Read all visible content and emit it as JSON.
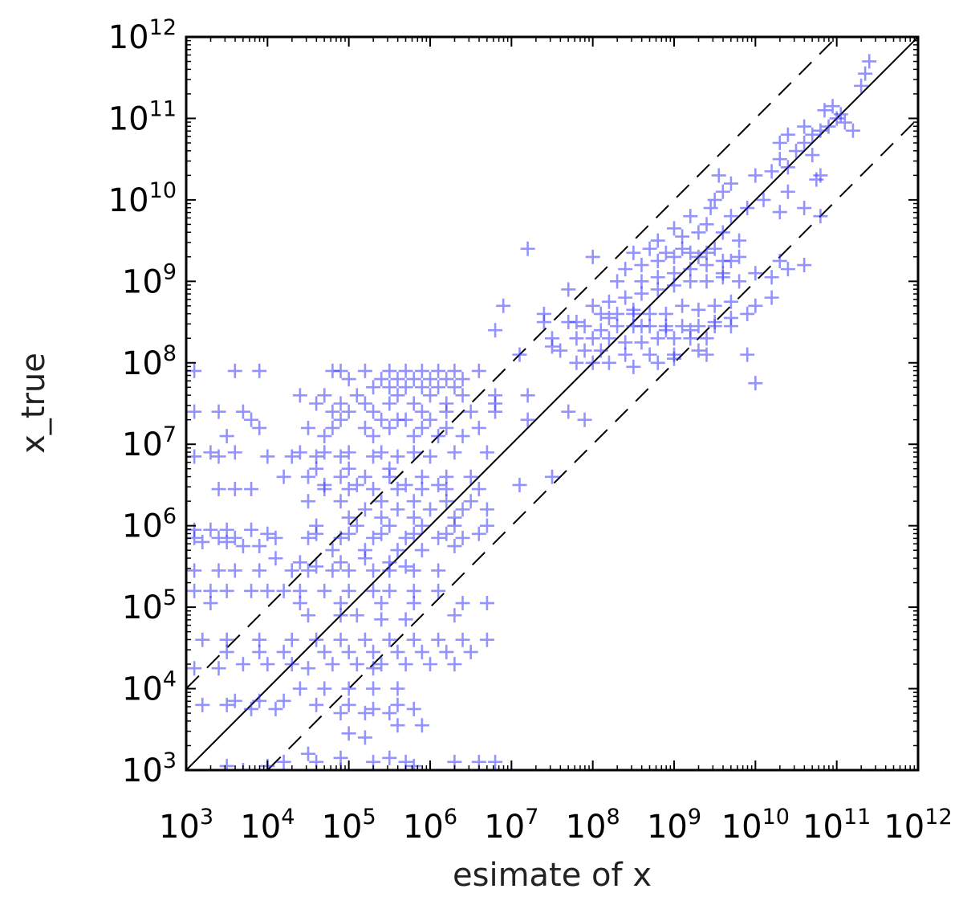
{
  "chart_data": {
    "type": "scatter",
    "xlabel": "esimate of x",
    "ylabel": "x_true",
    "x_scale": "log",
    "y_scale": "log",
    "xlim": [
      1000,
      1000000000000
    ],
    "ylim": [
      1000,
      1000000000000
    ],
    "x_ticks": [
      1000,
      10000,
      100000,
      1000000,
      10000000,
      100000000,
      1000000000,
      10000000000,
      100000000000,
      1000000000000
    ],
    "y_ticks": [
      1000,
      10000,
      100000,
      1000000,
      10000000,
      100000000,
      1000000000,
      10000000000,
      100000000000,
      1000000000000
    ],
    "tick_label_base": "10",
    "tick_exponents": [
      "3",
      "4",
      "5",
      "6",
      "7",
      "8",
      "9",
      "10",
      "11",
      "12"
    ],
    "marker": "+",
    "marker_color": "#3a3aff",
    "reference_lines": [
      {
        "style": "solid",
        "relation": "y = x"
      },
      {
        "style": "dashed",
        "relation": "y = 10x"
      },
      {
        "style": "dashed",
        "relation": "y = x / 10"
      }
    ],
    "grid": false,
    "points_log10": [
      [
        3.1,
        7.9
      ],
      [
        3.6,
        7.9
      ],
      [
        3.9,
        7.9
      ],
      [
        4.8,
        7.9
      ],
      [
        4.9,
        7.9
      ],
      [
        5.2,
        7.9
      ],
      [
        5.5,
        7.9
      ],
      [
        5.7,
        7.9
      ],
      [
        5.9,
        7.9
      ],
      [
        6.1,
        7.9
      ],
      [
        6.3,
        7.9
      ],
      [
        6.6,
        7.9
      ],
      [
        5.0,
        7.8
      ],
      [
        5.4,
        7.8
      ],
      [
        5.6,
        7.8
      ],
      [
        5.8,
        7.8
      ],
      [
        6.0,
        7.8
      ],
      [
        6.2,
        7.8
      ],
      [
        6.4,
        7.8
      ],
      [
        5.3,
        7.7
      ],
      [
        5.5,
        7.7
      ],
      [
        5.7,
        7.7
      ],
      [
        5.9,
        7.7
      ],
      [
        6.1,
        7.7
      ],
      [
        6.3,
        7.7
      ],
      [
        4.4,
        7.6
      ],
      [
        4.7,
        7.6
      ],
      [
        5.1,
        7.6
      ],
      [
        5.6,
        7.6
      ],
      [
        6.0,
        7.6
      ],
      [
        6.4,
        7.6
      ],
      [
        6.8,
        7.6
      ],
      [
        4.6,
        7.5
      ],
      [
        4.9,
        7.5
      ],
      [
        5.2,
        7.5
      ],
      [
        5.5,
        7.5
      ],
      [
        5.8,
        7.5
      ],
      [
        6.2,
        7.5
      ],
      [
        3.1,
        7.4
      ],
      [
        3.4,
        7.4
      ],
      [
        3.7,
        7.4
      ],
      [
        4.8,
        7.4
      ],
      [
        5.0,
        7.4
      ],
      [
        5.3,
        7.4
      ],
      [
        5.9,
        7.4
      ],
      [
        6.2,
        7.4
      ],
      [
        6.5,
        7.4
      ],
      [
        6.8,
        7.4
      ],
      [
        3.8,
        7.3
      ],
      [
        4.9,
        7.3
      ],
      [
        5.6,
        7.3
      ],
      [
        5.4,
        7.3
      ],
      [
        5.7,
        7.3
      ],
      [
        6.0,
        7.3
      ],
      [
        3.9,
        7.2
      ],
      [
        4.5,
        7.2
      ],
      [
        4.8,
        7.2
      ],
      [
        5.2,
        7.2
      ],
      [
        5.5,
        7.2
      ],
      [
        5.9,
        7.2
      ],
      [
        6.2,
        7.2
      ],
      [
        6.6,
        7.2
      ],
      [
        3.5,
        7.1
      ],
      [
        4.7,
        7.1
      ],
      [
        5.3,
        7.1
      ],
      [
        5.8,
        7.1
      ],
      [
        6.1,
        7.1
      ],
      [
        6.4,
        7.1
      ],
      [
        3.3,
        6.9
      ],
      [
        3.6,
        6.9
      ],
      [
        4.4,
        6.9
      ],
      [
        4.7,
        6.9
      ],
      [
        5.0,
        6.9
      ],
      [
        5.4,
        6.9
      ],
      [
        5.8,
        6.9
      ],
      [
        6.3,
        6.9
      ],
      [
        6.7,
        6.9
      ],
      [
        3.1,
        6.85
      ],
      [
        3.4,
        6.85
      ],
      [
        4.0,
        6.85
      ],
      [
        4.3,
        6.85
      ],
      [
        4.6,
        6.85
      ],
      [
        4.9,
        6.85
      ],
      [
        5.3,
        6.85
      ],
      [
        5.6,
        6.85
      ],
      [
        6.0,
        6.85
      ],
      [
        4.6,
        6.7
      ],
      [
        5.0,
        6.7
      ],
      [
        5.5,
        6.7
      ],
      [
        4.2,
        6.6
      ],
      [
        4.5,
        6.6
      ],
      [
        4.9,
        6.6
      ],
      [
        5.2,
        6.6
      ],
      [
        5.5,
        6.6
      ],
      [
        5.9,
        6.6
      ],
      [
        6.2,
        6.6
      ],
      [
        6.5,
        6.6
      ],
      [
        4.7,
        6.5
      ],
      [
        5.1,
        6.5
      ],
      [
        5.7,
        6.5
      ],
      [
        6.1,
        6.5
      ],
      [
        3.4,
        6.45
      ],
      [
        3.6,
        6.45
      ],
      [
        3.8,
        6.45
      ],
      [
        4.7,
        6.45
      ],
      [
        5.0,
        6.45
      ],
      [
        5.3,
        6.45
      ],
      [
        5.6,
        6.45
      ],
      [
        5.9,
        6.45
      ],
      [
        6.2,
        6.45
      ],
      [
        6.6,
        6.45
      ],
      [
        4.5,
        6.3
      ],
      [
        4.9,
        6.3
      ],
      [
        5.4,
        6.3
      ],
      [
        5.8,
        6.3
      ],
      [
        6.2,
        6.3
      ],
      [
        6.5,
        6.3
      ],
      [
        5.2,
        6.2
      ],
      [
        5.6,
        6.2
      ],
      [
        6.0,
        6.2
      ],
      [
        6.4,
        6.2
      ],
      [
        6.7,
        6.2
      ],
      [
        5.0,
        6.1
      ],
      [
        5.4,
        6.1
      ],
      [
        5.8,
        6.1
      ],
      [
        6.3,
        6.1
      ],
      [
        4.6,
        6.0
      ],
      [
        5.1,
        6.0
      ],
      [
        5.5,
        6.0
      ],
      [
        5.9,
        6.0
      ],
      [
        6.3,
        6.0
      ],
      [
        6.7,
        6.0
      ],
      [
        3.1,
        5.95
      ],
      [
        3.3,
        5.95
      ],
      [
        3.5,
        5.95
      ],
      [
        3.8,
        5.95
      ],
      [
        4.0,
        5.9
      ],
      [
        4.6,
        5.9
      ],
      [
        5.0,
        5.9
      ],
      [
        5.4,
        5.9
      ],
      [
        5.8,
        5.9
      ],
      [
        6.2,
        5.9
      ],
      [
        6.6,
        5.9
      ],
      [
        3.1,
        5.85
      ],
      [
        3.4,
        5.85
      ],
      [
        3.6,
        5.85
      ],
      [
        4.1,
        5.85
      ],
      [
        4.5,
        5.85
      ],
      [
        4.9,
        5.85
      ],
      [
        5.3,
        5.85
      ],
      [
        5.7,
        5.85
      ],
      [
        6.1,
        5.85
      ],
      [
        6.4,
        5.85
      ],
      [
        3.2,
        5.8
      ],
      [
        3.5,
        5.8
      ],
      [
        3.7,
        5.75
      ],
      [
        3.9,
        5.75
      ],
      [
        4.8,
        5.7
      ],
      [
        5.2,
        5.7
      ],
      [
        5.6,
        5.7
      ],
      [
        5.9,
        5.7
      ],
      [
        6.3,
        5.75
      ],
      [
        3.1,
        5.45
      ],
      [
        3.4,
        5.45
      ],
      [
        3.6,
        5.45
      ],
      [
        3.9,
        5.45
      ],
      [
        4.3,
        5.45
      ],
      [
        4.5,
        5.45
      ],
      [
        4.8,
        5.45
      ],
      [
        5.0,
        5.45
      ],
      [
        5.3,
        5.45
      ],
      [
        5.5,
        5.45
      ],
      [
        5.8,
        5.45
      ],
      [
        6.1,
        5.45
      ],
      [
        4.1,
        5.6
      ],
      [
        4.4,
        5.55
      ],
      [
        4.6,
        5.5
      ],
      [
        4.9,
        5.55
      ],
      [
        5.2,
        5.6
      ],
      [
        5.5,
        5.55
      ],
      [
        5.7,
        5.5
      ],
      [
        3.1,
        5.2
      ],
      [
        3.3,
        5.2
      ],
      [
        3.5,
        5.2
      ],
      [
        3.8,
        5.2
      ],
      [
        4.0,
        5.2
      ],
      [
        4.2,
        5.2
      ],
      [
        4.4,
        5.2
      ],
      [
        4.7,
        5.2
      ],
      [
        5.0,
        5.2
      ],
      [
        5.3,
        5.2
      ],
      [
        5.5,
        5.2
      ],
      [
        5.8,
        5.2
      ],
      [
        6.1,
        5.2
      ],
      [
        3.3,
        5.05
      ],
      [
        4.4,
        5.05
      ],
      [
        4.9,
        5.05
      ],
      [
        5.4,
        5.05
      ],
      [
        5.8,
        5.05
      ],
      [
        6.4,
        5.05
      ],
      [
        6.7,
        5.05
      ],
      [
        4.5,
        4.9
      ],
      [
        4.9,
        4.9
      ],
      [
        5.1,
        4.9
      ],
      [
        5.4,
        4.85
      ],
      [
        5.7,
        4.85
      ],
      [
        6.3,
        4.9
      ],
      [
        3.2,
        4.6
      ],
      [
        3.5,
        4.6
      ],
      [
        3.9,
        4.6
      ],
      [
        4.3,
        4.6
      ],
      [
        4.6,
        4.6
      ],
      [
        4.9,
        4.6
      ],
      [
        5.2,
        4.6
      ],
      [
        5.5,
        4.6
      ],
      [
        5.8,
        4.6
      ],
      [
        6.1,
        4.6
      ],
      [
        6.4,
        4.6
      ],
      [
        6.7,
        4.6
      ],
      [
        3.5,
        4.45
      ],
      [
        3.9,
        4.45
      ],
      [
        4.2,
        4.45
      ],
      [
        4.7,
        4.45
      ],
      [
        5.0,
        4.45
      ],
      [
        5.3,
        4.45
      ],
      [
        5.6,
        4.45
      ],
      [
        5.9,
        4.45
      ],
      [
        6.2,
        4.45
      ],
      [
        6.5,
        4.45
      ],
      [
        3.7,
        4.3
      ],
      [
        4.0,
        4.3
      ],
      [
        4.3,
        4.3
      ],
      [
        4.8,
        4.3
      ],
      [
        5.1,
        4.3
      ],
      [
        5.4,
        4.3
      ],
      [
        5.7,
        4.3
      ],
      [
        6.0,
        4.3
      ],
      [
        6.3,
        4.3
      ],
      [
        3.1,
        4.25
      ],
      [
        3.4,
        4.25
      ],
      [
        4.5,
        4.25
      ],
      [
        5.3,
        4.25
      ],
      [
        4.4,
        4.0
      ],
      [
        4.7,
        4.0
      ],
      [
        5.0,
        4.0
      ],
      [
        5.3,
        4.0
      ],
      [
        5.6,
        4.0
      ],
      [
        3.6,
        3.85
      ],
      [
        3.9,
        3.85
      ],
      [
        4.2,
        3.85
      ],
      [
        4.6,
        3.8
      ],
      [
        5.0,
        3.8
      ],
      [
        5.3,
        3.75
      ],
      [
        5.6,
        3.8
      ],
      [
        3.2,
        3.8
      ],
      [
        3.5,
        3.8
      ],
      [
        3.8,
        3.75
      ],
      [
        4.1,
        3.75
      ],
      [
        4.9,
        3.7
      ],
      [
        5.2,
        3.7
      ],
      [
        5.5,
        3.7
      ],
      [
        5.8,
        3.75
      ],
      [
        5.6,
        3.55
      ],
      [
        5.9,
        3.55
      ],
      [
        5.0,
        3.45
      ],
      [
        5.2,
        3.4
      ],
      [
        4.5,
        3.2
      ],
      [
        4.9,
        3.15
      ],
      [
        5.5,
        3.15
      ],
      [
        5.7,
        3.1
      ],
      [
        4.2,
        3.1
      ],
      [
        4.6,
        3.1
      ],
      [
        5.3,
        3.1
      ],
      [
        3.7,
        3.0
      ],
      [
        4.9,
        3.0
      ],
      [
        5.8,
        3.05
      ],
      [
        3.5,
        3.05
      ],
      [
        4.0,
        3.05
      ],
      [
        6.3,
        3.1
      ],
      [
        6.6,
        3.1
      ],
      [
        6.8,
        3.1
      ],
      [
        7.2,
        9.4
      ],
      [
        8.0,
        9.3
      ],
      [
        7.7,
        8.9
      ],
      [
        8.3,
        9.0
      ],
      [
        6.9,
        8.7
      ],
      [
        7.4,
        8.6
      ],
      [
        6.8,
        8.4
      ],
      [
        7.8,
        8.5
      ],
      [
        8.2,
        8.55
      ],
      [
        8.5,
        8.6
      ],
      [
        7.1,
        8.1
      ],
      [
        7.5,
        8.2
      ],
      [
        6.8,
        7.5
      ],
      [
        7.2,
        7.6
      ],
      [
        7.2,
        7.3
      ],
      [
        7.7,
        7.4
      ],
      [
        7.9,
        7.3
      ],
      [
        7.5,
        6.6
      ],
      [
        7.1,
        6.5
      ],
      [
        7.4,
        8.5
      ],
      [
        7.7,
        8.5
      ],
      [
        7.9,
        8.45
      ],
      [
        8.1,
        8.4
      ],
      [
        8.3,
        8.45
      ],
      [
        8.5,
        8.45
      ],
      [
        8.7,
        8.45
      ],
      [
        8.9,
        8.45
      ],
      [
        9.1,
        8.45
      ],
      [
        9.3,
        8.45
      ],
      [
        9.5,
        8.45
      ],
      [
        9.7,
        8.45
      ],
      [
        7.5,
        8.3
      ],
      [
        7.8,
        8.3
      ],
      [
        8.0,
        8.3
      ],
      [
        8.2,
        8.3
      ],
      [
        8.4,
        8.25
      ],
      [
        8.6,
        8.25
      ],
      [
        8.8,
        8.3
      ],
      [
        9.0,
        8.3
      ],
      [
        9.2,
        8.3
      ],
      [
        9.4,
        8.3
      ],
      [
        7.6,
        8.15
      ],
      [
        7.9,
        8.15
      ],
      [
        8.1,
        8.15
      ],
      [
        8.4,
        8.1
      ],
      [
        8.7,
        8.1
      ],
      [
        9.0,
        8.1
      ],
      [
        9.3,
        8.15
      ],
      [
        7.8,
        8.0
      ],
      [
        8.0,
        8.0
      ],
      [
        8.2,
        8.0
      ],
      [
        8.5,
        7.95
      ],
      [
        8.8,
        8.0
      ],
      [
        9.0,
        8.05
      ],
      [
        8.0,
        8.7
      ],
      [
        8.2,
        8.75
      ],
      [
        8.4,
        8.8
      ],
      [
        8.6,
        8.85
      ],
      [
        8.8,
        8.9
      ],
      [
        9.0,
        8.95
      ],
      [
        9.2,
        9.0
      ],
      [
        9.4,
        9.0
      ],
      [
        9.6,
        9.05
      ],
      [
        8.3,
        8.6
      ],
      [
        8.5,
        8.65
      ],
      [
        8.7,
        8.6
      ],
      [
        8.9,
        8.6
      ],
      [
        9.1,
        8.7
      ],
      [
        9.3,
        8.65
      ],
      [
        9.5,
        8.7
      ],
      [
        9.7,
        8.75
      ],
      [
        8.1,
        8.6
      ],
      [
        8.6,
        9.0
      ],
      [
        8.8,
        9.05
      ],
      [
        9.0,
        9.1
      ],
      [
        9.2,
        9.15
      ],
      [
        9.4,
        9.2
      ],
      [
        9.6,
        9.25
      ],
      [
        9.8,
        9.3
      ],
      [
        8.4,
        9.15
      ],
      [
        8.6,
        9.2
      ],
      [
        8.8,
        9.25
      ],
      [
        9.0,
        9.3
      ],
      [
        9.2,
        9.35
      ],
      [
        9.4,
        9.35
      ],
      [
        8.5,
        9.35
      ],
      [
        8.7,
        9.4
      ],
      [
        8.9,
        9.35
      ],
      [
        9.1,
        9.4
      ],
      [
        9.3,
        9.3
      ],
      [
        9.5,
        9.4
      ],
      [
        8.6,
        8.45
      ],
      [
        8.9,
        8.4
      ],
      [
        9.2,
        8.4
      ],
      [
        9.5,
        8.5
      ],
      [
        9.7,
        8.55
      ],
      [
        9.9,
        8.6
      ],
      [
        10.0,
        8.7
      ],
      [
        10.2,
        8.8
      ],
      [
        9.4,
        8.1
      ],
      [
        9.9,
        8.1
      ],
      [
        10.0,
        7.75
      ],
      [
        9.8,
        9.5
      ],
      [
        9.6,
        9.6
      ],
      [
        9.7,
        9.8
      ],
      [
        9.9,
        9.9
      ],
      [
        10.1,
        10.0
      ],
      [
        9.5,
        10.0
      ],
      [
        9.7,
        10.2
      ],
      [
        10.0,
        10.3
      ],
      [
        10.2,
        10.35
      ],
      [
        10.4,
        10.4
      ],
      [
        10.3,
        10.5
      ],
      [
        10.5,
        10.6
      ],
      [
        10.6,
        10.7
      ],
      [
        10.7,
        10.8
      ],
      [
        10.8,
        10.85
      ],
      [
        10.9,
        10.9
      ],
      [
        11.0,
        11.0
      ],
      [
        10.85,
        11.1
      ],
      [
        10.95,
        11.15
      ],
      [
        11.05,
        11.05
      ],
      [
        11.1,
        10.95
      ],
      [
        11.2,
        10.85
      ],
      [
        10.6,
        10.9
      ],
      [
        10.4,
        10.8
      ],
      [
        10.3,
        10.7
      ],
      [
        10.7,
        10.55
      ],
      [
        10.8,
        10.3
      ],
      [
        10.75,
        10.25
      ],
      [
        10.4,
        10.1
      ],
      [
        10.6,
        9.9
      ],
      [
        10.3,
        9.85
      ],
      [
        10.8,
        9.8
      ],
      [
        9.6,
        9.1
      ],
      [
        9.8,
        9.0
      ],
      [
        10.0,
        9.1
      ],
      [
        10.2,
        9.05
      ],
      [
        10.4,
        9.15
      ],
      [
        10.6,
        9.2
      ],
      [
        9.7,
        9.25
      ],
      [
        10.3,
        9.25
      ],
      [
        11.3,
        11.4
      ],
      [
        11.35,
        11.55
      ],
      [
        11.4,
        11.7
      ],
      [
        9.3,
        9.6
      ],
      [
        9.1,
        9.55
      ],
      [
        9.4,
        9.7
      ],
      [
        8.8,
        9.5
      ],
      [
        9.0,
        9.65
      ],
      [
        9.2,
        9.8
      ],
      [
        9.45,
        9.9
      ],
      [
        9.6,
        10.1
      ],
      [
        9.55,
        10.3
      ]
    ]
  }
}
